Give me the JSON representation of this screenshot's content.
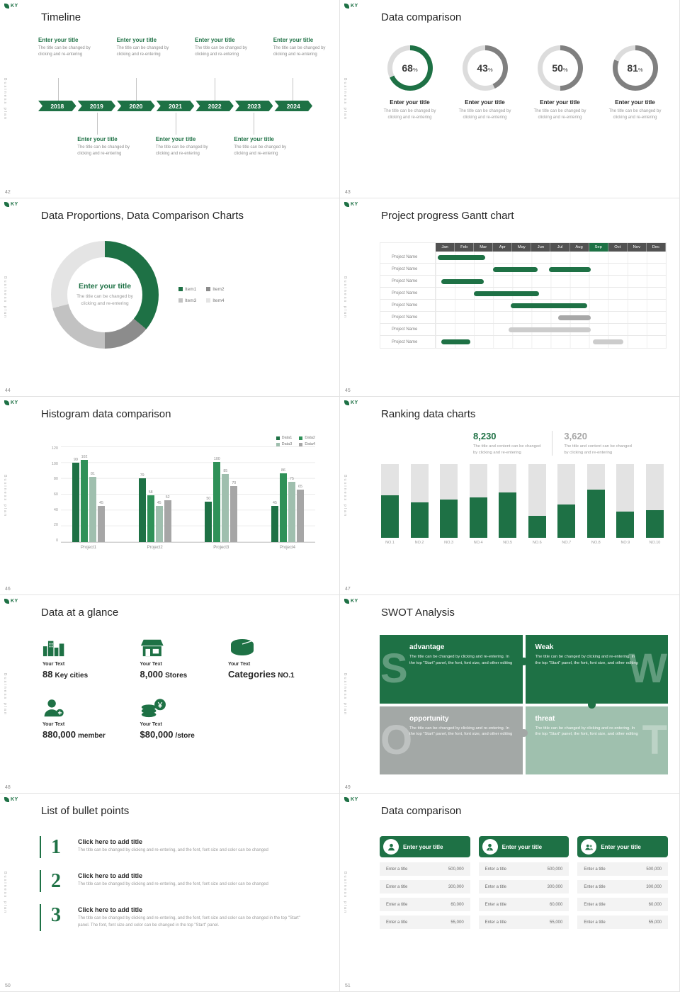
{
  "theme": {
    "green": "#1e7145",
    "green_mid": "#2f9158",
    "sage": "#9fbfae",
    "gray": "#a6a6a6",
    "gray_dark": "#525252",
    "gray_light": "#e3e3e3"
  },
  "common": {
    "logo": "KY",
    "sidebar_text": "Business plan"
  },
  "slides": {
    "timeline": {
      "page": "42",
      "title": "Timeline",
      "years": [
        "2018",
        "2019",
        "2020",
        "2021",
        "2022",
        "2023",
        "2024"
      ],
      "item_title": "Enter your title",
      "item_desc_1": "The title can be changed by",
      "item_desc_2": "clicking and re-entering",
      "top_positions": [
        0,
        2,
        4,
        6
      ],
      "bottom_positions": [
        1,
        3,
        5
      ]
    },
    "donuts": {
      "page": "43",
      "title": "Data comparison",
      "item_title": "Enter your title",
      "item_desc_1": "The title can be changed by",
      "item_desc_2": "clicking and re-entering",
      "items": [
        {
          "percent": 68,
          "color": "#1e7145"
        },
        {
          "percent": 43,
          "color": "#808080"
        },
        {
          "percent": 50,
          "color": "#808080"
        },
        {
          "percent": 81,
          "color": "#808080"
        }
      ],
      "ring_bg": "#dcdcdc"
    },
    "pie": {
      "page": "44",
      "title": "Data Proportions, Data Comparison Charts",
      "center_title": "Enter your title",
      "center_desc_1": "The title can be changed by",
      "center_desc_2": "clicking and re-entering",
      "chart_data": {
        "type": "pie",
        "segments": [
          {
            "label": "Item1",
            "value": 36,
            "color": "#1e7145"
          },
          {
            "label": "Item2",
            "value": 14,
            "color": "#8c8c8c"
          },
          {
            "label": "Item3",
            "value": 21,
            "color": "#c2c2c2"
          },
          {
            "label": "Item4",
            "value": 29,
            "color": "#e4e4e4"
          }
        ]
      }
    },
    "gantt": {
      "page": "45",
      "title": "Project progress Gantt chart",
      "months": [
        "Jan",
        "Feb",
        "Mar",
        "Apr",
        "May",
        "Jun",
        "Jul",
        "Aug",
        "Sep",
        "Oct",
        "Nov",
        "Dec"
      ],
      "highlight_month": 8,
      "row_label": "Project Name",
      "rows": [
        {
          "bars": [
            {
              "start": 0.1,
              "span": 2.5,
              "color": "#1e7145"
            }
          ]
        },
        {
          "bars": [
            {
              "start": 3.0,
              "span": 2.3,
              "color": "#1e7145"
            },
            {
              "start": 5.9,
              "span": 2.2,
              "color": "#1e7145"
            }
          ]
        },
        {
          "bars": [
            {
              "start": 0.3,
              "span": 2.2,
              "color": "#1e7145"
            }
          ]
        },
        {
          "bars": [
            {
              "start": 2.0,
              "span": 3.4,
              "color": "#1e7145"
            }
          ]
        },
        {
          "bars": [
            {
              "start": 3.9,
              "span": 4.0,
              "color": "#1e7145"
            }
          ]
        },
        {
          "bars": [
            {
              "start": 6.4,
              "span": 1.7,
              "color": "#a8a8a8"
            }
          ]
        },
        {
          "bars": [
            {
              "start": 3.8,
              "span": 4.3,
              "color": "#cccccc"
            }
          ]
        },
        {
          "bars": [
            {
              "start": 0.3,
              "span": 1.5,
              "color": "#1e7145"
            },
            {
              "start": 8.2,
              "span": 1.6,
              "color": "#cccccc"
            }
          ]
        }
      ]
    },
    "histogram": {
      "page": "46",
      "title": "Histogram data comparison",
      "chart_data": {
        "type": "bar",
        "categories": [
          "Project1",
          "Project2",
          "Project3",
          "Project4"
        ],
        "series": [
          {
            "name": "Data1",
            "color": "#1e7145",
            "values": [
              99,
              79,
              50,
              45
            ]
          },
          {
            "name": "Data2",
            "color": "#2f9158",
            "values": [
              102,
              58,
              100,
              86
            ]
          },
          {
            "name": "Data3",
            "color": "#9fbfae",
            "values": [
              81,
              45,
              85,
              75
            ]
          },
          {
            "name": "Data4",
            "color": "#a6a6a6",
            "values": [
              45,
              52,
              70,
              65
            ]
          }
        ],
        "y_ticks": [
          0,
          20,
          40,
          60,
          80,
          100,
          120
        ],
        "y_max": 120,
        "grid": true,
        "legend_position": "top-right"
      }
    },
    "ranking": {
      "page": "47",
      "title": "Ranking data charts",
      "stat1": {
        "value": "8,230",
        "desc_1": "The title and content can be changed",
        "desc_2": "by clicking and re-entering"
      },
      "stat2": {
        "value": "3,620",
        "desc_1": "The title and content can be changed",
        "desc_2": "by clicking and re-entering"
      },
      "chart_data": {
        "type": "bar",
        "categories": [
          "NO.1",
          "NO.2",
          "NO.3",
          "NO.4",
          "NO.5",
          "NO.6",
          "NO.7",
          "NO.8",
          "NO.9",
          "NO.10"
        ],
        "values": [
          58,
          48,
          52,
          55,
          62,
          30,
          46,
          66,
          36,
          38
        ],
        "y_max": 100,
        "bar_color": "#1e7145",
        "track_color": "#e3e3e3"
      }
    },
    "glance": {
      "page": "48",
      "title": "Data at a glance",
      "stats": [
        {
          "icon": "city-icon",
          "label": "Your Text",
          "number": "88",
          "suffix": "Key cities"
        },
        {
          "icon": "store-icon",
          "label": "Your Text",
          "number": "8,000",
          "suffix": "Stores"
        },
        {
          "icon": "categories-icon",
          "label": "Your Text",
          "number": "Categories",
          "suffix": "NO.1"
        },
        {
          "icon": "member-icon",
          "label": "Your Text",
          "number": "880,000",
          "suffix": "member"
        },
        {
          "icon": "coins-icon",
          "label": "Your Text",
          "number": "$80,000",
          "suffix": "/store"
        }
      ]
    },
    "swot": {
      "page": "49",
      "title": "SWOT Analysis",
      "blocks": [
        {
          "letter": "S",
          "title": "advantage",
          "desc": "The title can be changed by clicking and re-entering. In the top \"Start\" panel, the font, font size, and other editing",
          "color": "#1e7145",
          "side": "left"
        },
        {
          "letter": "W",
          "title": "Weak",
          "desc": "The title can be changed by clicking and re-entering. In the top \"Start\" panel, the font, font size, and other editing",
          "color": "#1e7145",
          "side": "right"
        },
        {
          "letter": "O",
          "title": "opportunity",
          "desc": "The title can be changed by clicking and re-entering. In the top \"Start\" panel, the font, font size, and other editing",
          "color": "#a3a8a6",
          "side": "left"
        },
        {
          "letter": "T",
          "title": "threat",
          "desc": "The title can be changed by clicking and re-entering. In the top \"Start\" panel, the font, font size, and other editing",
          "color": "#9fc0ae",
          "side": "right"
        }
      ]
    },
    "bullets": {
      "page": "50",
      "title": "List of bullet points",
      "items": [
        {
          "num": "1",
          "title": "Click here to add title",
          "desc": "The title can be changed by clicking and re-entering, and the font, font size and color can be changed"
        },
        {
          "num": "2",
          "title": "Click here to add title",
          "desc": "The title can be changed by clicking and re-entering, and the font, font size and color can be changed"
        },
        {
          "num": "3",
          "title": "Click here to add title",
          "desc": "The title can be changed by clicking and re-entering, and the font, font size and color can be changed in the top \"Start\" panel. The font, font size and color can be changed in the top \"Start\" panel."
        }
      ]
    },
    "cards": {
      "page": "51",
      "title": "Data comparison",
      "cards": [
        {
          "icon": "person-icon",
          "title": "Enter your title",
          "rows": [
            [
              "Enter a title",
              "500,000"
            ],
            [
              "Enter a title",
              "300,000"
            ],
            [
              "Enter a title",
              "60,000"
            ],
            [
              "Enter a title",
              "55,000"
            ]
          ]
        },
        {
          "icon": "person2-icon",
          "title": "Enter your title",
          "rows": [
            [
              "Enter a title",
              "500,000"
            ],
            [
              "Enter a title",
              "300,000"
            ],
            [
              "Enter a title",
              "60,000"
            ],
            [
              "Enter a title",
              "55,000"
            ]
          ]
        },
        {
          "icon": "people-icon",
          "title": "Enter your title",
          "rows": [
            [
              "Enter a title",
              "500,000"
            ],
            [
              "Enter a title",
              "300,000"
            ],
            [
              "Enter a title",
              "60,000"
            ],
            [
              "Enter a title",
              "55,000"
            ]
          ]
        }
      ]
    }
  }
}
